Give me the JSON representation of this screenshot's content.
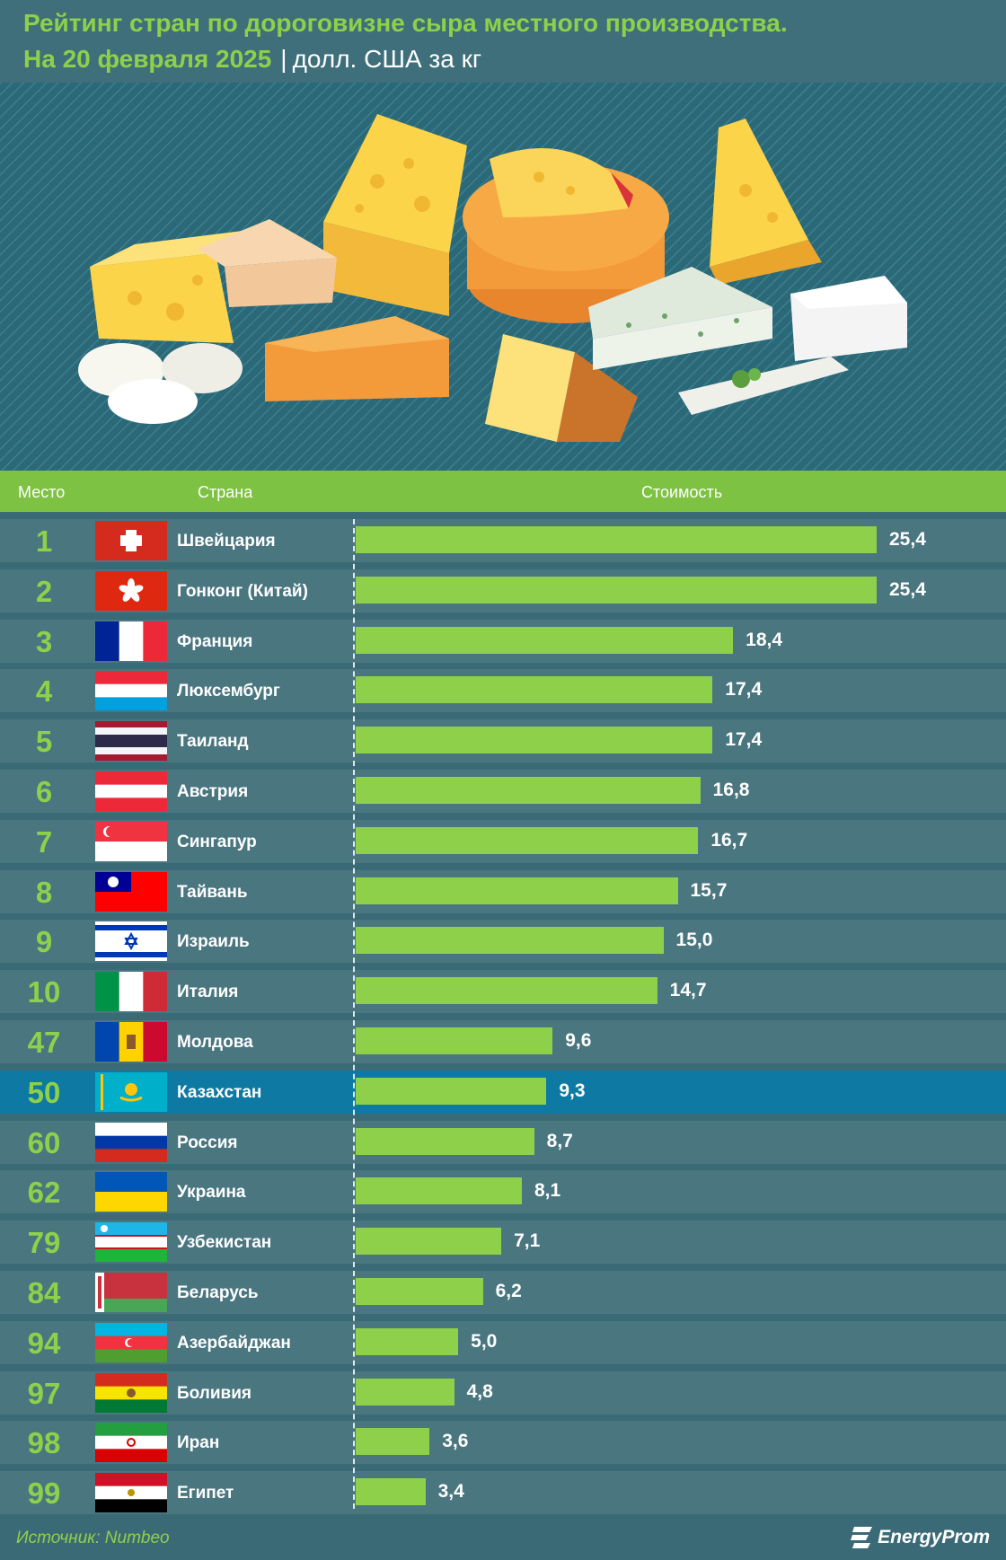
{
  "header": {
    "title": "Рейтинг стран по дороговизне сыра местного производства.",
    "date": "На 20 февраля 2025",
    "separator": "|",
    "unit": "долл. США за кг"
  },
  "columns": {
    "rank": "Место",
    "country": "Страна",
    "cost": "Стоимость"
  },
  "footer": {
    "source": "Источник: Numbeo",
    "brand": "EnergyProm"
  },
  "colors": {
    "accent": "#8fd04a",
    "bar": "#8fd04a",
    "row": "#4a7680",
    "highlight": "#0e7aa3"
  },
  "chart_data": {
    "type": "bar",
    "orientation": "horizontal",
    "title": "Рейтинг стран по дороговизне сыра местного производства.",
    "subtitle": "На 20 февраля 2025 | долл. США за кг",
    "highlight": "Казахстан",
    "xlim": [
      0,
      27
    ],
    "grid": false,
    "rows": [
      {
        "rank": "1",
        "country": "Швейцария",
        "value": 25.4,
        "label": "25,4",
        "flag": "switzerland-flag"
      },
      {
        "rank": "2",
        "country": "Гонконг (Китай)",
        "value": 25.4,
        "label": "25,4",
        "flag": "hong-kong-flag"
      },
      {
        "rank": "3",
        "country": "Франция",
        "value": 18.4,
        "label": "18,4",
        "flag": "france-flag"
      },
      {
        "rank": "4",
        "country": "Люксембург",
        "value": 17.4,
        "label": "17,4",
        "flag": "luxembourg-flag"
      },
      {
        "rank": "5",
        "country": "Таиланд",
        "value": 17.4,
        "label": "17,4",
        "flag": "thailand-flag"
      },
      {
        "rank": "6",
        "country": "Австрия",
        "value": 16.8,
        "label": "16,8",
        "flag": "austria-flag"
      },
      {
        "rank": "7",
        "country": "Сингапур",
        "value": 16.7,
        "label": "16,7",
        "flag": "singapore-flag"
      },
      {
        "rank": "8",
        "country": "Тайвань",
        "value": 15.7,
        "label": "15,7",
        "flag": "taiwan-flag"
      },
      {
        "rank": "9",
        "country": "Израиль",
        "value": 15.0,
        "label": "15,0",
        "flag": "israel-flag"
      },
      {
        "rank": "10",
        "country": "Италия",
        "value": 14.7,
        "label": "14,7",
        "flag": "italy-flag"
      },
      {
        "rank": "47",
        "country": "Молдова",
        "value": 9.6,
        "label": "9,6",
        "flag": "moldova-flag"
      },
      {
        "rank": "50",
        "country": "Казахстан",
        "value": 9.3,
        "label": "9,3",
        "flag": "kazakhstan-flag"
      },
      {
        "rank": "60",
        "country": "Россия",
        "value": 8.7,
        "label": "8,7",
        "flag": "russia-flag"
      },
      {
        "rank": "62",
        "country": "Украина",
        "value": 8.1,
        "label": "8,1",
        "flag": "ukraine-flag"
      },
      {
        "rank": "79",
        "country": "Узбекистан",
        "value": 7.1,
        "label": "7,1",
        "flag": "uzbekistan-flag"
      },
      {
        "rank": "84",
        "country": "Беларусь",
        "value": 6.2,
        "label": "6,2",
        "flag": "belarus-flag"
      },
      {
        "rank": "94",
        "country": "Азербайджан",
        "value": 5.0,
        "label": "5,0",
        "flag": "azerbaijan-flag"
      },
      {
        "rank": "97",
        "country": "Боливия",
        "value": 4.8,
        "label": "4,8",
        "flag": "bolivia-flag"
      },
      {
        "rank": "98",
        "country": "Иран",
        "value": 3.6,
        "label": "3,6",
        "flag": "iran-flag"
      },
      {
        "rank": "99",
        "country": "Египет",
        "value": 3.4,
        "label": "3,4",
        "flag": "egypt-flag"
      }
    ]
  }
}
